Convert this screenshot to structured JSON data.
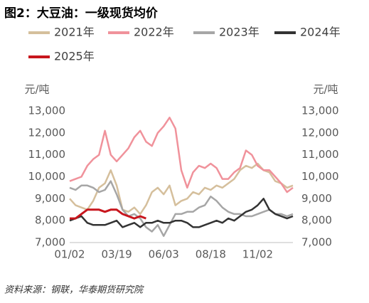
{
  "chart_data": {
    "type": "line",
    "title": "图2：大豆油：一级现货均价",
    "y_label": "元/吨",
    "y2_label": "元/吨",
    "source": "资料来源：钢联，华泰期货研究院",
    "categories": [
      "01/02",
      null,
      null,
      null,
      null,
      null,
      null,
      null,
      "03/19",
      null,
      null,
      null,
      null,
      null,
      null,
      null,
      "06/03",
      null,
      null,
      null,
      null,
      null,
      null,
      null,
      "08/18",
      null,
      null,
      null,
      null,
      null,
      null,
      null,
      "11/02",
      null,
      null,
      null,
      null,
      null,
      null
    ],
    "series": [
      {
        "name": "2021年",
        "color": "#d5bf9c",
        "values": [
          9000,
          8700,
          8600,
          8500,
          8900,
          9500,
          9700,
          10300,
          9600,
          8500,
          8400,
          8600,
          8300,
          8700,
          9300,
          9500,
          9200,
          9600,
          8700,
          8900,
          9000,
          9300,
          9200,
          9500,
          9400,
          9600,
          9500,
          9700,
          9900,
          10300,
          10500,
          10400,
          10600,
          10300,
          10200,
          9800,
          9700,
          9500,
          9600
        ]
      },
      {
        "name": "2022年",
        "color": "#f0929b",
        "values": [
          9800,
          9900,
          10000,
          10500,
          10800,
          11000,
          12100,
          11000,
          10700,
          11000,
          11300,
          11800,
          12100,
          11600,
          11400,
          12000,
          12300,
          12700,
          12200,
          10300,
          9500,
          10200,
          10500,
          10400,
          10600,
          10400,
          9900,
          9900,
          10200,
          10400,
          11200,
          11000,
          10500,
          10300,
          10300,
          10000,
          9700,
          9300,
          9500
        ]
      },
      {
        "name": "2023年",
        "color": "#a6a6a6",
        "values": [
          9500,
          9400,
          9600,
          9600,
          9500,
          9300,
          9400,
          9800,
          9200,
          8500,
          8200,
          8300,
          8100,
          7700,
          7500,
          7800,
          7300,
          7800,
          8300,
          8300,
          8400,
          8400,
          8600,
          8700,
          9100,
          8900,
          8600,
          8400,
          8300,
          8300,
          8200,
          8200,
          8300,
          8400,
          8500,
          8300,
          8300,
          8200,
          8300
        ]
      },
      {
        "name": "2024年",
        "color": "#333333",
        "values": [
          8000,
          8100,
          8200,
          7900,
          7800,
          7800,
          7800,
          7900,
          8000,
          7700,
          7800,
          7900,
          7700,
          7900,
          7900,
          8000,
          7900,
          7900,
          8000,
          8000,
          7900,
          7700,
          7700,
          7800,
          7900,
          8000,
          7900,
          8100,
          8000,
          8200,
          8400,
          8500,
          8700,
          9000,
          8500,
          8300,
          8200,
          8100,
          8200
        ]
      },
      {
        "name": "2025年",
        "color": "#c8161d",
        "values": [
          8100,
          8100,
          8300,
          8500,
          8500,
          8500,
          8400,
          8500,
          8500,
          8300,
          8200,
          8100,
          8200,
          8100,
          null,
          null,
          null,
          null,
          null,
          null,
          null,
          null,
          null,
          null,
          null,
          null,
          null,
          null,
          null,
          null,
          null,
          null,
          null,
          null,
          null,
          null,
          null,
          null,
          null
        ]
      }
    ],
    "ylim": [
      7000,
      13000
    ],
    "yticks": [
      {
        "value": 7000,
        "label": "7,000"
      },
      {
        "value": 8000,
        "label": "8,000"
      },
      {
        "value": 9000,
        "label": "9,000"
      },
      {
        "value": 10000,
        "label": "10,000"
      },
      {
        "value": 11000,
        "label": "11,000"
      },
      {
        "value": 12000,
        "label": "12,000"
      },
      {
        "value": 13000,
        "label": "13,000"
      }
    ],
    "y2lim": [
      7000,
      13000
    ],
    "y2ticks": [
      {
        "value": 7000,
        "label": "7,000"
      },
      {
        "value": 8000,
        "label": "8,000"
      },
      {
        "value": 9000,
        "label": "9,000"
      },
      {
        "value": 10000,
        "label": "10,000"
      },
      {
        "value": 11000,
        "label": "11,000"
      },
      {
        "value": 12000,
        "label": "12,000"
      },
      {
        "value": 13000,
        "label": "13,000"
      }
    ],
    "grid": false
  }
}
